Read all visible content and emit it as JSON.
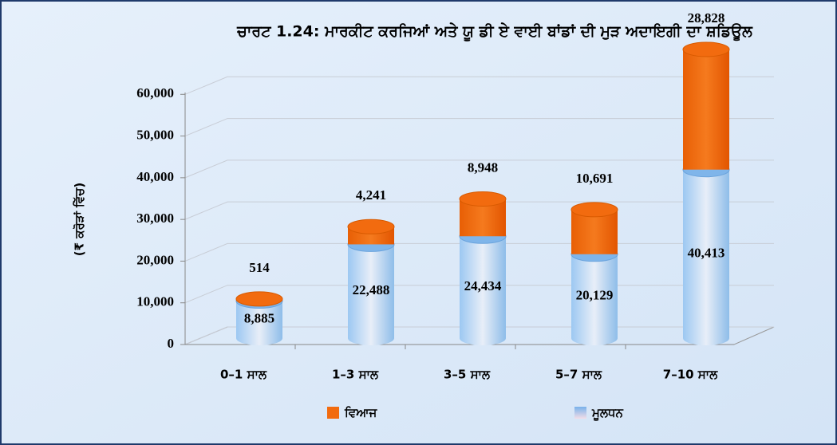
{
  "chart_data": {
    "type": "bar",
    "stacked": true,
    "title": "ਚਾਰਟ 1.24: ਮਾਰਕੀਟ ਕਰਜਿਆਂ ਅਤੇ ਯੂ ਡੀ ਏ ਵਾਈ ਬਾਂਡਾਂ ਦੀ ਮੁੜ ਅਦਾਇਗੀ ਦਾ ਸ਼ਡਿਊਲ",
    "y_label": "(₹ ਕਰੋੜਾਂ ਵਿੱਚ)",
    "categories": [
      "0–1 ਸਾਲ",
      "1–3 ਸਾਲ",
      "3–5 ਸਾਲ",
      "5–7 ਸਾਲ",
      "7–10 ਸਾਲ"
    ],
    "series": [
      {
        "name": "ਮੂਲਧਨ",
        "color": "#7fb5ea",
        "values": [
          8885,
          22488,
          24434,
          20129,
          40413
        ],
        "value_labels": [
          "8,885",
          "22,488",
          "24,434",
          "20,129",
          "40,413"
        ]
      },
      {
        "name": "ਵਿਆਜ",
        "color": "#f26b0f",
        "values": [
          514,
          4241,
          8948,
          10691,
          28828
        ],
        "value_labels": [
          "514",
          "4,241",
          "8,948",
          "10,691",
          "28,828"
        ]
      }
    ],
    "ylim": [
      0,
      70000
    ],
    "yticks": [
      0,
      {
        "value": 10000,
        "label": "10,000"
      },
      {
        "value": 20000,
        "label": "20,000"
      },
      {
        "value": 30000,
        "label": "30,000"
      },
      {
        "value": 40000,
        "label": "40,000"
      },
      {
        "value": 50000,
        "label": "50,000"
      },
      {
        "value": 60000,
        "label": "60,000"
      }
    ],
    "grid": true,
    "legend": "bottom"
  }
}
